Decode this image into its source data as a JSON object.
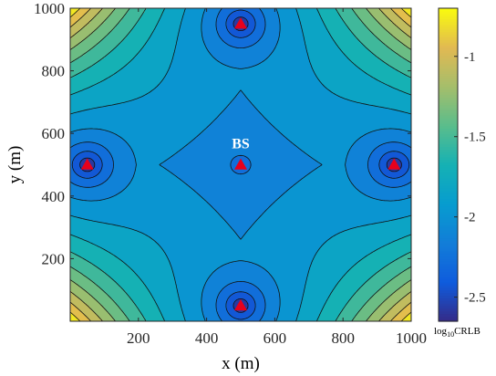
{
  "chart_data": {
    "type": "heatmap",
    "subtype": "filled-contour",
    "title": "",
    "xlabel": "x (m)",
    "ylabel": "y (m)",
    "xlim": [
      0,
      1000
    ],
    "ylim": [
      0,
      1000
    ],
    "xticks": [
      200,
      400,
      600,
      800,
      1000
    ],
    "yticks": [
      200,
      400,
      600,
      800,
      1000
    ],
    "xtick_labels": [
      "200",
      "400",
      "600",
      "800",
      "1000"
    ],
    "ytick_labels": [
      "200",
      "400",
      "600",
      "800",
      "1000"
    ],
    "colormap": "parula",
    "colorbar": {
      "label_main": "log",
      "label_sub": "10",
      "label_tail": "CRLB",
      "range": [
        -2.65,
        -0.7
      ],
      "ticks": [
        -2.5,
        -2,
        -1.5,
        -1
      ],
      "tick_labels": [
        "-2.5",
        "-2",
        "-1.5",
        "-1"
      ]
    },
    "contour_levels": [
      -2.5,
      -2.35,
      -2.2,
      -2.05,
      -1.9,
      -1.75,
      -1.6,
      -1.45,
      -1.3,
      -1.15,
      -1.0,
      -0.85
    ],
    "anchors": [
      {
        "x": 500,
        "y": 950
      },
      {
        "x": 50,
        "y": 500
      },
      {
        "x": 500,
        "y": 500
      },
      {
        "x": 950,
        "y": 500
      },
      {
        "x": 500,
        "y": 50
      }
    ],
    "annotation": {
      "text": "BS",
      "x": 500,
      "y": 570
    },
    "marker_color": "#e8001c",
    "grid": false
  }
}
